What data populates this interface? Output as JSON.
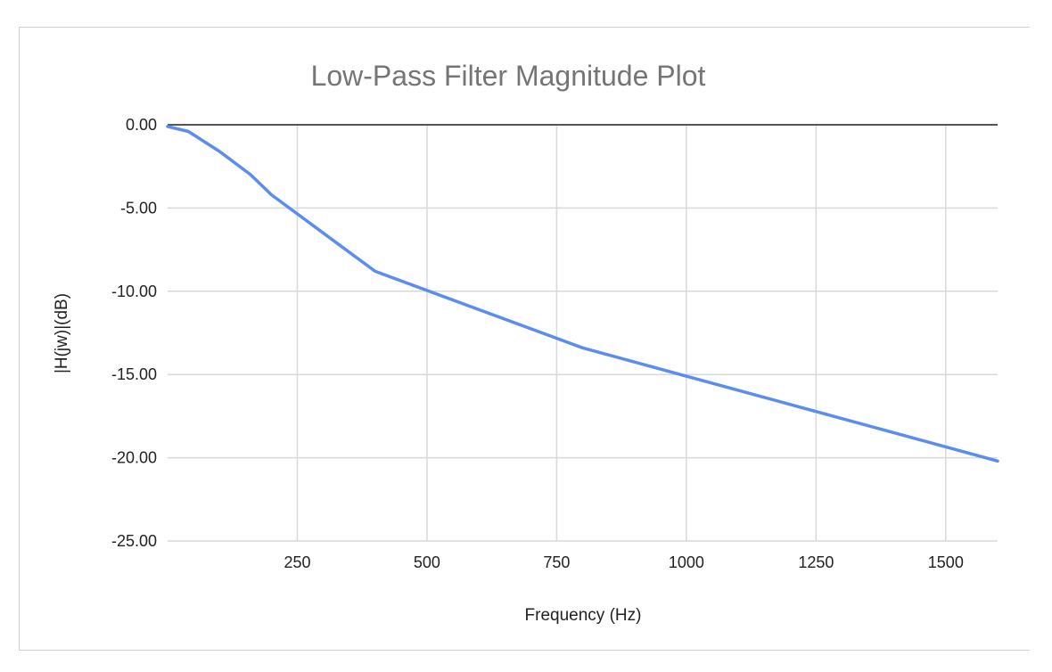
{
  "chart_data": {
    "type": "line",
    "title": "Low-Pass Filter Magnitude Plot",
    "xlabel": "Frequency (Hz)",
    "ylabel": "|H(jw)|(dB)",
    "xlim": [
      0,
      1600
    ],
    "ylim": [
      -25,
      0
    ],
    "x_ticks": [
      250,
      500,
      750,
      1000,
      1250,
      1500
    ],
    "x_tick_labels": [
      "250",
      "500",
      "750",
      "1000",
      "1250",
      "1500"
    ],
    "y_ticks": [
      0,
      -5,
      -10,
      -15,
      -20,
      -25
    ],
    "y_tick_labels": [
      "0.00",
      "-5.00",
      "-10.00",
      "-15.00",
      "-20.00",
      "-25.00"
    ],
    "grid": true,
    "legend": "none",
    "series": [
      {
        "color": "#5B8DEF",
        "x": [
          0,
          40,
          100,
          160,
          200,
          400,
          800,
          1600
        ],
        "y": [
          -0.1,
          -0.4,
          -1.6,
          -3.0,
          -4.2,
          -8.8,
          -13.4,
          -20.2
        ]
      }
    ]
  }
}
